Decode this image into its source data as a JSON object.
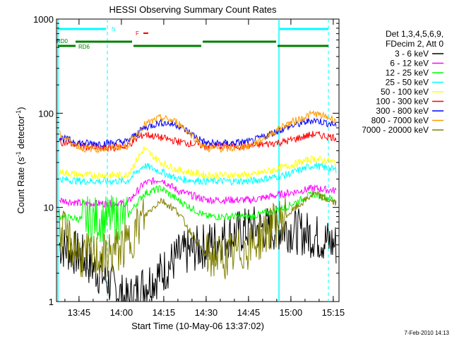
{
  "chart_data": {
    "type": "line",
    "title": "HESSI Observing Summary Count Rates",
    "xlabel": "Start Time (10-May-06 13:37:02)",
    "ylabel_main": "Count Rate (s",
    "ylabel_sup1": "-1",
    "ylabel_mid": " detector",
    "ylabel_sup2": "-1",
    "ylabel_end": ")",
    "x_ticks": [
      "13:45",
      "14:00",
      "14:15",
      "14:30",
      "14:45",
      "15:00",
      "15:15"
    ],
    "x_tick_minutes": [
      825,
      840,
      855,
      870,
      885,
      900,
      915
    ],
    "xlim_minutes": [
      817.03,
      917.03
    ],
    "y_scale": "log",
    "ylim": [
      1,
      1000
    ],
    "y_ticks": [
      "1",
      "10",
      "100",
      "1000"
    ],
    "y_tick_values": [
      1,
      10,
      100,
      1000
    ],
    "legend_title": [
      "Det 1,3,4,5,6,9,",
      "FDecim 2, Att 0"
    ],
    "legend_position": "right",
    "series": [
      {
        "name": "3 - 6 keV",
        "color": "#000000",
        "values": [
          4,
          3,
          1.8,
          1,
          1.5,
          2,
          3,
          4,
          5,
          6,
          6,
          5,
          4
        ]
      },
      {
        "name": "6 - 12 keV",
        "color": "#ff00ff",
        "values": [
          12,
          11,
          11,
          11,
          18,
          20,
          15,
          12,
          12,
          12,
          14,
          16,
          15
        ]
      },
      {
        "name": "12 - 25 keV",
        "color": "#00ff00",
        "values": [
          8,
          7.5,
          7.5,
          8,
          14,
          16,
          12,
          8,
          8,
          8,
          10,
          14,
          12
        ]
      },
      {
        "name": "25 - 50 keV",
        "color": "#00ffff",
        "values": [
          20,
          19,
          19,
          19,
          28,
          24,
          20,
          19,
          19,
          19,
          22,
          28,
          25
        ]
      },
      {
        "name": "50 - 100 keV",
        "color": "#ffff00",
        "values": [
          24,
          22,
          22,
          22,
          42,
          30,
          25,
          22,
          22,
          22,
          27,
          33,
          30
        ]
      },
      {
        "name": "100 - 300 keV",
        "color": "#ff0000",
        "values": [
          50,
          45,
          42,
          45,
          60,
          55,
          50,
          45,
          45,
          45,
          50,
          60,
          55
        ]
      },
      {
        "name": "300 - 800 keV",
        "color": "#0000ff",
        "values": [
          55,
          48,
          48,
          50,
          70,
          80,
          75,
          48,
          48,
          50,
          70,
          85,
          75
        ]
      },
      {
        "name": "800 - 7000 keV",
        "color": "#ff9900",
        "values": [
          60,
          42,
          42,
          45,
          75,
          90,
          80,
          42,
          42,
          45,
          75,
          100,
          85
        ]
      },
      {
        "name": "7000 - 20000 keV",
        "color": "#808000",
        "values": [
          6,
          3,
          3,
          4,
          8,
          12,
          9,
          3,
          3,
          4,
          8,
          14,
          11
        ]
      }
    ],
    "series_x_minutes": [
      818,
      826,
      834,
      842,
      848,
      854,
      860,
      870,
      878,
      886,
      898,
      908,
      916
    ],
    "annotations": {
      "flag_N": "N",
      "flag_F": "F",
      "rd0": "RD0",
      "rd6": "RD6"
    },
    "footer_date": "7-Feb-2010 14:13"
  }
}
